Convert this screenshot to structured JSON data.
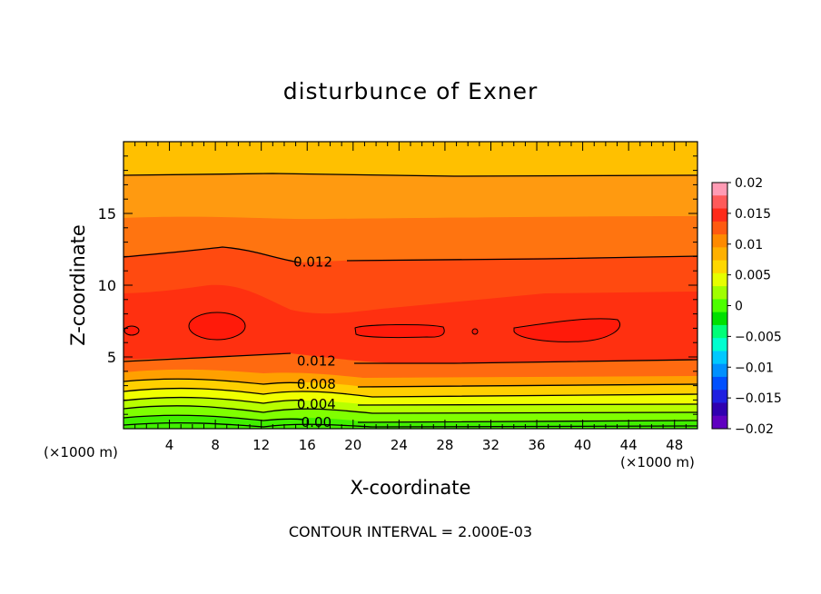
{
  "chart_data": {
    "type": "contour",
    "title": "disturbunce of Exner",
    "xlabel": "X-coordinate",
    "ylabel": "Z-coordinate",
    "x_unit_label": "(×1000 m)",
    "x_unit_label_right": "(×1000 m)",
    "footer": "CONTOUR INTERVAL = 2.000E-03",
    "xlim": [
      0,
      50
    ],
    "ylim": [
      0,
      20
    ],
    "x_ticks": [
      "4",
      "8",
      "12",
      "16",
      "20",
      "24",
      "28",
      "32",
      "36",
      "40",
      "44",
      "48"
    ],
    "y_ticks": [
      "5",
      "10",
      "15"
    ],
    "contour_interval": 0.002,
    "contour_labels": [
      "0.012",
      "0.012",
      "0.008",
      "0.004",
      "0.00"
    ],
    "colorbar": {
      "min": -0.02,
      "max": 0.02,
      "tick_labels": [
        "0.02",
        "0.015",
        "0.01",
        "0.005",
        "0",
        "−0.005",
        "−0.01",
        "−0.015",
        "−0.02"
      ],
      "colors": [
        "#ff9bb4",
        "#ff5a5a",
        "#ff2a1a",
        "#ff5a10",
        "#ff8a00",
        "#ffb000",
        "#ffd700",
        "#e6ff00",
        "#a0ff00",
        "#4cff00",
        "#00e000",
        "#00ff78",
        "#00ffd0",
        "#00c8ff",
        "#0090ff",
        "#0050ff",
        "#2020e0",
        "#3000b0",
        "#6000c0"
      ]
    }
  }
}
